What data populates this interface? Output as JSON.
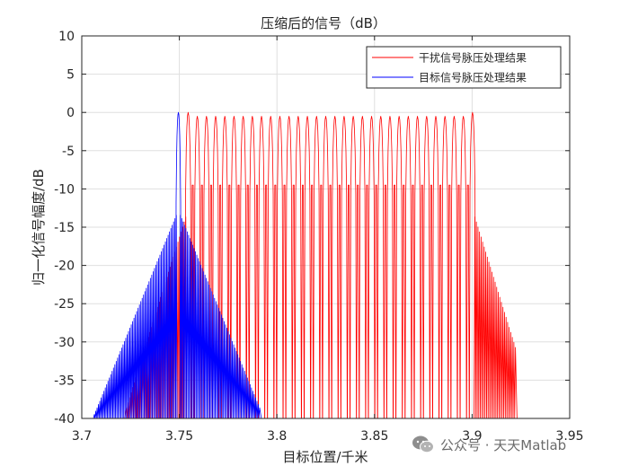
{
  "chart_data": {
    "type": "line",
    "title": "压缩后的信号（dB）",
    "xlabel": "目标位置/千米",
    "ylabel": "归一化信号幅度/dB",
    "xlim": [
      3.7,
      3.95
    ],
    "ylim": [
      -40,
      10
    ],
    "xticks": [
      3.7,
      3.75,
      3.8,
      3.85,
      3.9,
      3.95
    ],
    "xtick_labels": [
      "3.7",
      "3.75",
      "3.8",
      "3.85",
      "3.9",
      "3.95"
    ],
    "yticks": [
      10,
      5,
      0,
      -5,
      -10,
      -15,
      -20,
      -25,
      -30,
      -35,
      -40
    ],
    "ytick_labels": [
      "10",
      "5",
      "0",
      "-5",
      "-10",
      "-15",
      "-20",
      "-25",
      "-30",
      "-35",
      "-40"
    ],
    "grid": true,
    "legend_position": "top-right",
    "series": [
      {
        "name": "干扰信号脉压处理结果",
        "color": "#ff0000",
        "shape": "sidelobe-comb",
        "peak_x": [
          3.7545,
          3.7592,
          3.7639,
          3.7686,
          3.7733,
          3.778,
          3.7827,
          3.7874,
          3.7921,
          3.7968,
          3.8015,
          3.8062,
          3.8109,
          3.8156,
          3.8203,
          3.825,
          3.8297,
          3.8344,
          3.8391,
          3.8438,
          3.8485,
          3.8532,
          3.8579,
          3.8626,
          3.8673,
          3.872,
          3.8767,
          3.8814,
          3.8861,
          3.8908,
          3.8955,
          3.9002
        ],
        "peak_y": [
          0,
          -0.5,
          -0.5,
          -0.5,
          -0.5,
          -0.5,
          -0.5,
          -0.5,
          -0.5,
          -0.5,
          -0.5,
          -0.5,
          -0.5,
          -0.5,
          -0.5,
          -0.5,
          -0.5,
          -0.5,
          -0.5,
          -0.5,
          -0.5,
          -0.5,
          -0.5,
          -0.5,
          -0.5,
          -0.5,
          -0.5,
          -0.5,
          -0.5,
          -0.5,
          -0.5,
          0
        ],
        "inter_peak_y": -9.5,
        "left_sidelobe_range_x": [
          3.722,
          3.7545
        ],
        "right_sidelobe_range_x": [
          3.9002,
          3.923
        ],
        "sidelobe_floor_y": -40
      },
      {
        "name": "目标信号脉压处理结果",
        "color": "#0000ff",
        "shape": "single-peak",
        "peak_x": [
          3.7495
        ],
        "peak_y": [
          0
        ],
        "sidelobe_range_x": [
          3.706,
          3.792
        ],
        "sidelobe_floor_y": -40
      }
    ]
  },
  "watermark": {
    "text": "公众号 · 天天Matlab",
    "icon": "wechat-icon"
  }
}
